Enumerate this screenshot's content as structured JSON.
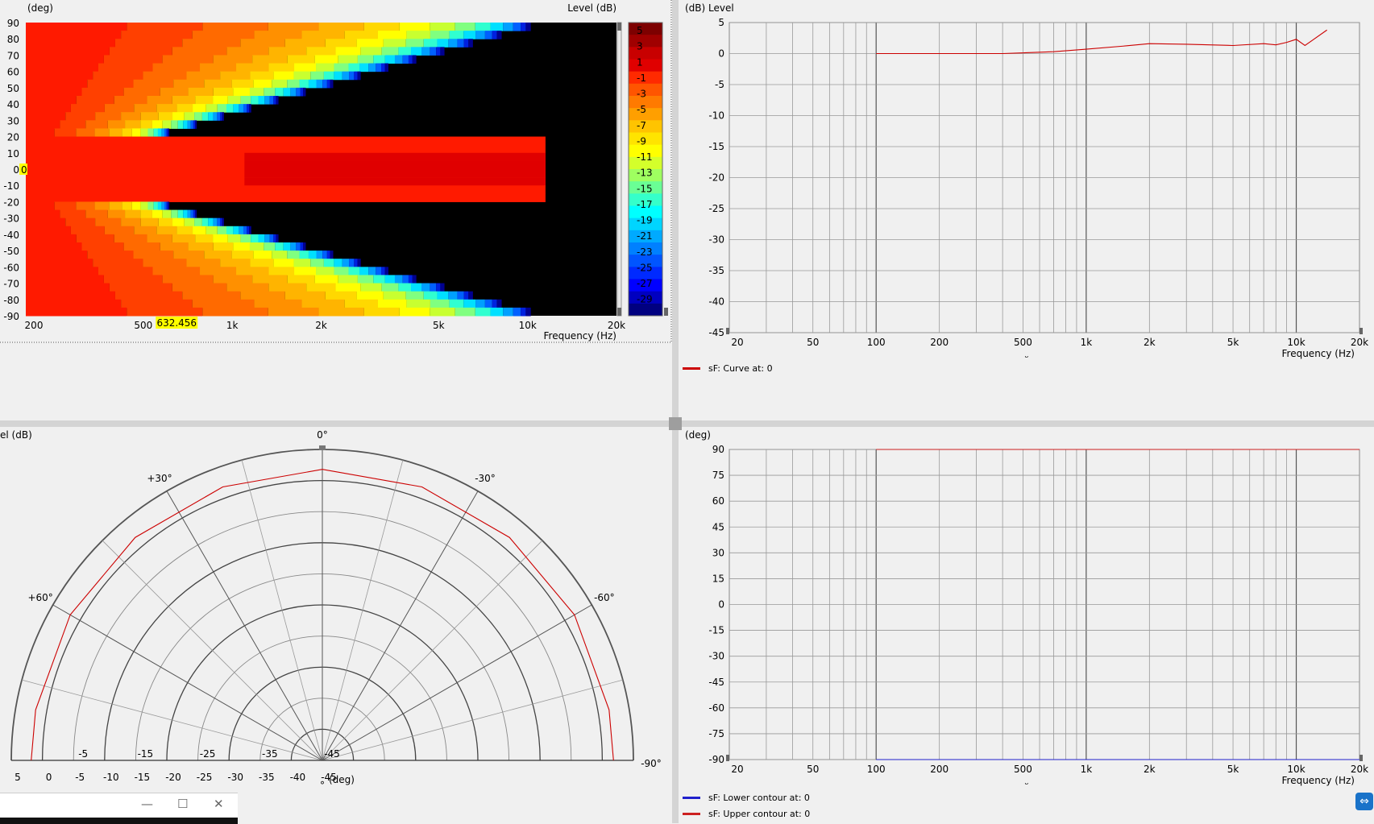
{
  "sonogram": {
    "ylabel": "(deg)",
    "colorbar_label": "Level  (dB)",
    "xlabel": "Frequency  (Hz)",
    "y_ticks": [
      "90",
      "80",
      "70",
      "60",
      "50",
      "40",
      "30",
      "20",
      "10",
      "0",
      "-10",
      "-20",
      "-30",
      "-40",
      "-50",
      "-60",
      "-70",
      "-80",
      "-90"
    ],
    "x_ticks": [
      {
        "v": 200,
        "l": "200"
      },
      {
        "v": 500,
        "l": "500"
      },
      {
        "v": 1000,
        "l": "1k"
      },
      {
        "v": 2000,
        "l": "2k"
      },
      {
        "v": 5000,
        "l": "5k"
      },
      {
        "v": 10000,
        "l": "10k"
      },
      {
        "v": 20000,
        "l": "20k"
      }
    ],
    "colorbar_ticks": [
      "5",
      "3",
      "1",
      "-1",
      "-3",
      "-5",
      "-7",
      "-9",
      "-11",
      "-13",
      "-15",
      "-17",
      "-19",
      "-21",
      "-23",
      "-25",
      "-27",
      "-29"
    ],
    "cursor_x_value": "632.456",
    "cursor_y_value": "0",
    "colors": {
      "levels": [
        "#7d0000",
        "#a00000",
        "#c80000",
        "#e00000",
        "#ff2a00",
        "#ff5500",
        "#ff7a00",
        "#ff9f00",
        "#ffc400",
        "#ffe400",
        "#ffff00",
        "#d4ff2b",
        "#9fff60",
        "#6aff95",
        "#35ffca",
        "#00ffff",
        "#00d5ff",
        "#00aaff",
        "#0080ff",
        "#0055ff",
        "#002aff",
        "#0000ff",
        "#0000c0",
        "#000080"
      ]
    }
  },
  "chart_data": [
    {
      "type": "heatmap",
      "name": "sonogram",
      "xlabel": "Frequency  (Hz)",
      "ylabel": "(deg)",
      "zlabel": "Level  (dB)",
      "xlim": [
        200,
        20000
      ],
      "ylim": [
        -90,
        90
      ],
      "zlim": [
        -30,
        6
      ],
      "x_scale": "log",
      "contour_rows": [
        {
          "deg": 90,
          "freq_at_level": {
            "0": 300,
            "-3": 650,
            "-6": 1100,
            "-10": 1900,
            "-15": 3300,
            "-20": 5500,
            "-25": 8500,
            "-29": 10800
          }
        },
        {
          "deg": 60,
          "freq_at_level": {
            "0": 330,
            "-3": 700,
            "-6": 1200,
            "-10": 2100,
            "-15": 3700,
            "-20": 6200,
            "-25": 9300,
            "-29": 11000
          }
        },
        {
          "deg": 30,
          "freq_at_level": {
            "0": 800,
            "-3": 1300,
            "-6": 2200,
            "-10": 4000,
            "-15": 6500,
            "-20": 9000,
            "-25": 10600,
            "-29": 11300
          }
        },
        {
          "deg": 20,
          "freq_at_level": {
            "0": 20000,
            "-3": 20000,
            "-6": 20000,
            "-10": 20000,
            "-15": 20000,
            "-20": 20000,
            "-25": 20000,
            "-29": 20000
          }
        }
      ],
      "data_end_freq": 11500
    },
    {
      "type": "line",
      "name": "frequency-response",
      "ylabel": "(dB)  Level",
      "xlabel": "Frequency  (Hz)",
      "x_scale": "log",
      "xlim": [
        20,
        20000
      ],
      "ylim": [
        -45,
        5
      ],
      "x_ticks": [
        {
          "v": 20,
          "l": "20"
        },
        {
          "v": 50,
          "l": "50"
        },
        {
          "v": 100,
          "l": "100"
        },
        {
          "v": 200,
          "l": "200"
        },
        {
          "v": 500,
          "l": "500"
        },
        {
          "v": 1000,
          "l": "1k"
        },
        {
          "v": 2000,
          "l": "2k"
        },
        {
          "v": 5000,
          "l": "5k"
        },
        {
          "v": 10000,
          "l": "10k"
        },
        {
          "v": 20000,
          "l": "20k"
        }
      ],
      "y_ticks": [
        5,
        0,
        -5,
        -10,
        -15,
        -20,
        -25,
        -30,
        -35,
        -40,
        -45
      ],
      "series": [
        {
          "name": "sF: Curve at: 0",
          "color": "#cc0000",
          "x": [
            100,
            200,
            400,
            700,
            1000,
            1500,
            2000,
            3000,
            5000,
            7000,
            8000,
            9000,
            10000,
            11000,
            12000,
            14000
          ],
          "y": [
            0,
            0,
            0,
            0.3,
            0.7,
            1.2,
            1.6,
            1.5,
            1.3,
            1.6,
            1.4,
            1.8,
            2.3,
            1.3,
            2.2,
            3.8
          ]
        }
      ]
    },
    {
      "type": "line",
      "name": "polar",
      "ylabel": "el  (dB)",
      "xlabel": "(deg)",
      "r_ticks": [
        {
          "v": 5,
          "l": "5"
        },
        {
          "v": 0,
          "l": "0"
        },
        {
          "v": -5,
          "l": "-5"
        },
        {
          "v": -10,
          "l": "-10"
        },
        {
          "v": -15,
          "l": "-15"
        },
        {
          "v": -20,
          "l": "-20"
        },
        {
          "v": -25,
          "l": "-25"
        },
        {
          "v": -30,
          "l": "-30"
        },
        {
          "v": -35,
          "l": "-35"
        },
        {
          "v": -40,
          "l": "-40"
        },
        {
          "v": -45,
          "l": "-45"
        }
      ],
      "angle_labels": [
        {
          "a": 0,
          "l": "0°"
        },
        {
          "a": 30,
          "l": "+30°"
        },
        {
          "a": -30,
          "l": "-30°"
        },
        {
          "a": 60,
          "l": "+60°"
        },
        {
          "a": -60,
          "l": "-60°"
        },
        {
          "a": -90,
          "l": "-90°"
        }
      ],
      "rlim": [
        -45,
        5
      ],
      "series": [
        {
          "name": "polar response",
          "color": "#cc0000",
          "angle": [
            -90,
            -80,
            -60,
            -40,
            -20,
            0,
            20,
            40,
            60,
            80,
            90
          ],
          "level": [
            1.8,
            1.8,
            1.8,
            1.8,
            1.8,
            1.8,
            1.8,
            1.8,
            1.8,
            1.8,
            1.8
          ]
        }
      ]
    },
    {
      "type": "line",
      "name": "contour-angle",
      "ylabel": "(deg)",
      "xlabel": "Frequency  (Hz)",
      "x_scale": "log",
      "xlim": [
        20,
        20000
      ],
      "ylim": [
        -90,
        90
      ],
      "x_ticks": [
        {
          "v": 20,
          "l": "20"
        },
        {
          "v": 50,
          "l": "50"
        },
        {
          "v": 100,
          "l": "100"
        },
        {
          "v": 200,
          "l": "200"
        },
        {
          "v": 500,
          "l": "500"
        },
        {
          "v": 1000,
          "l": "1k"
        },
        {
          "v": 2000,
          "l": "2k"
        },
        {
          "v": 5000,
          "l": "5k"
        },
        {
          "v": 10000,
          "l": "10k"
        },
        {
          "v": 20000,
          "l": "20k"
        }
      ],
      "y_ticks": [
        90,
        75,
        60,
        45,
        30,
        15,
        0,
        -15,
        -30,
        -45,
        -60,
        -75,
        -90
      ],
      "series": [
        {
          "name": "sF: Lower contour at: 0",
          "color": "#2020cc",
          "x": [
            100,
            20000
          ],
          "y": [
            -90,
            -90
          ]
        },
        {
          "name": "sF: Upper contour at: 0",
          "color": "#cc2020",
          "x": [
            100,
            20000
          ],
          "y": [
            90,
            90
          ]
        }
      ]
    }
  ],
  "taskbar": {
    "minimize": "—",
    "maximize": "☐",
    "close": "✕"
  }
}
